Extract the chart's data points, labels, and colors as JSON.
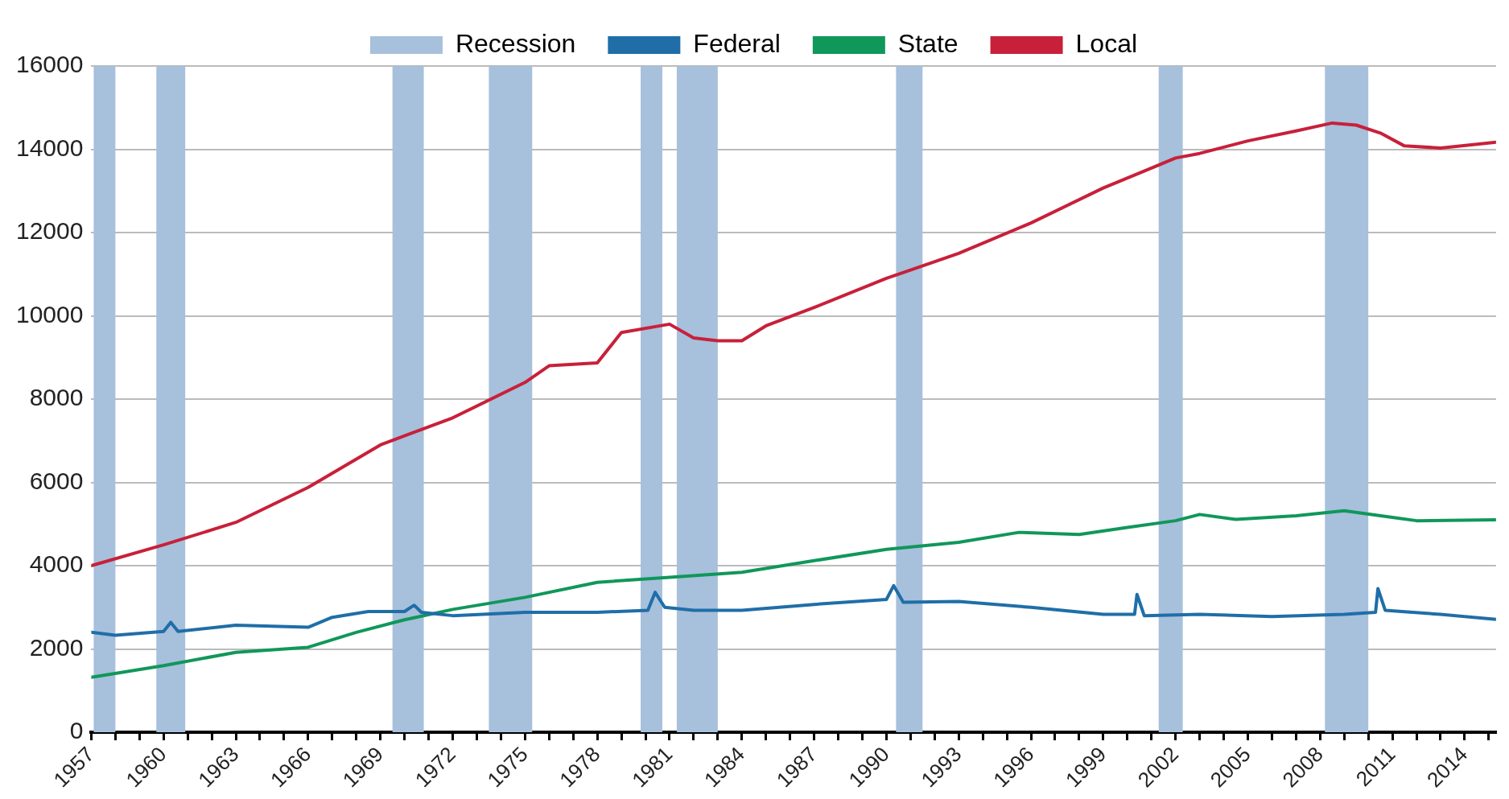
{
  "chart_data": {
    "type": "line",
    "xlim": [
      1957,
      2015.3
    ],
    "xticks": [
      1957,
      {
        "value": 1958,
        "label": null
      },
      {
        "value": 1959,
        "label": null
      },
      1960,
      {
        "value": 1961,
        "label": null
      },
      {
        "value": 1962,
        "label": null
      },
      1963,
      {
        "value": 1964,
        "label": null
      },
      {
        "value": 1965,
        "label": null
      },
      1966,
      {
        "value": 1967,
        "label": null
      },
      {
        "value": 1968,
        "label": null
      },
      1969,
      {
        "value": 1970,
        "label": null
      },
      {
        "value": 1971,
        "label": null
      },
      1972,
      {
        "value": 1973,
        "label": null
      },
      {
        "value": 1974,
        "label": null
      },
      1975,
      {
        "value": 1976,
        "label": null
      },
      {
        "value": 1977,
        "label": null
      },
      1978,
      {
        "value": 1979,
        "label": null
      },
      {
        "value": 1980,
        "label": null
      },
      1981,
      {
        "value": 1982,
        "label": null
      },
      {
        "value": 1983,
        "label": null
      },
      1984,
      {
        "value": 1985,
        "label": null
      },
      {
        "value": 1986,
        "label": null
      },
      1987,
      {
        "value": 1988,
        "label": null
      },
      {
        "value": 1989,
        "label": null
      },
      1990,
      {
        "value": 1991,
        "label": null
      },
      {
        "value": 1992,
        "label": null
      },
      1993,
      {
        "value": 1994,
        "label": null
      },
      {
        "value": 1995,
        "label": null
      },
      1996,
      {
        "value": 1997,
        "label": null
      },
      {
        "value": 1998,
        "label": null
      },
      1999,
      {
        "value": 2000,
        "label": null
      },
      {
        "value": 2001,
        "label": null
      },
      2002,
      {
        "value": 2003,
        "label": null
      },
      {
        "value": 2004,
        "label": null
      },
      2005,
      {
        "value": 2006,
        "label": null
      },
      {
        "value": 2007,
        "label": null
      },
      2008,
      {
        "value": 2009,
        "label": null
      },
      {
        "value": 2010,
        "label": null
      },
      2011,
      {
        "value": 2012,
        "label": null
      },
      {
        "value": 2013,
        "label": null
      },
      2014,
      {
        "value": 2015,
        "label": null
      }
    ],
    "ylim": [
      0,
      16000
    ],
    "yticks": [
      0,
      2000,
      4000,
      6000,
      8000,
      10000,
      12000,
      14000,
      16000
    ],
    "grid": "y",
    "legend": "top",
    "marker": "none",
    "line_style": "solid",
    "bands": [
      {
        "axis": "x",
        "from": 1957.1,
        "to": 1958.0,
        "label": "Recession",
        "color": "#a7c0dc"
      },
      {
        "axis": "x",
        "from": 1959.7,
        "to": 1960.9,
        "color": "#a7c0dc"
      },
      {
        "axis": "x",
        "from": 1969.5,
        "to": 1970.8,
        "color": "#a7c0dc"
      },
      {
        "axis": "x",
        "from": 1973.5,
        "to": 1975.3,
        "color": "#a7c0dc"
      },
      {
        "axis": "x",
        "from": 1979.8,
        "to": 1980.7,
        "color": "#a7c0dc"
      },
      {
        "axis": "x",
        "from": 1981.3,
        "to": 1983.0,
        "color": "#a7c0dc"
      },
      {
        "axis": "x",
        "from": 1990.4,
        "to": 1991.5,
        "color": "#a7c0dc"
      },
      {
        "axis": "x",
        "from": 2001.3,
        "to": 2002.3,
        "color": "#a7c0dc"
      },
      {
        "axis": "x",
        "from": 2008.2,
        "to": 2010.0,
        "color": "#a7c0dc"
      }
    ],
    "series": [
      {
        "name": "Federal",
        "color": "#1f6ea8",
        "x": [
          1957,
          1958,
          1960,
          1960.3,
          1960.6,
          1963,
          1966,
          1967,
          1968.5,
          1970,
          1970.4,
          1970.7,
          1972,
          1975,
          1978,
          1980.1,
          1980.4,
          1980.8,
          1982,
          1984,
          1987,
          1990,
          1990.3,
          1990.7,
          1993,
          1996,
          1999,
          2000.3,
          2000.4,
          2000.7,
          2003,
          2006,
          2009,
          2010.3,
          2010.4,
          2010.7,
          2013,
          2015.3
        ],
        "values": [
          2400,
          2330,
          2420,
          2640,
          2420,
          2570,
          2520,
          2760,
          2900,
          2900,
          3050,
          2880,
          2800,
          2880,
          2880,
          2930,
          3360,
          3000,
          2930,
          2930,
          3070,
          3190,
          3520,
          3120,
          3140,
          3000,
          2830,
          2830,
          3310,
          2800,
          2830,
          2780,
          2830,
          2880,
          3450,
          2930,
          2830,
          2710
        ]
      },
      {
        "name": "State",
        "color": "#10975a",
        "x": [
          1957,
          1960,
          1963,
          1966,
          1968,
          1970,
          1972,
          1975,
          1978,
          1981,
          1984,
          1987,
          1990,
          1993,
          1995.5,
          1998,
          2000,
          2002,
          2003,
          2004.5,
          2007,
          2009,
          2011,
          2012,
          2015.3
        ],
        "values": [
          1320,
          1600,
          1920,
          2040,
          2400,
          2700,
          2950,
          3240,
          3600,
          3720,
          3840,
          4120,
          4390,
          4560,
          4800,
          4750,
          4920,
          5080,
          5230,
          5110,
          5200,
          5320,
          5160,
          5080,
          5100
        ]
      },
      {
        "name": "Local",
        "color": "#c8203a",
        "x": [
          1957,
          1960,
          1963,
          1966,
          1969,
          1972,
          1975,
          1976,
          1978,
          1979,
          1981,
          1982,
          1983,
          1984,
          1985,
          1987,
          1990,
          1991,
          1993,
          1996,
          1999,
          2001,
          2002,
          2003,
          2005,
          2007,
          2008.5,
          2009.5,
          2010.5,
          2011.5,
          2013,
          2015.3
        ],
        "values": [
          4000,
          4500,
          5040,
          5880,
          6900,
          7550,
          8400,
          8800,
          8870,
          9600,
          9800,
          9470,
          9400,
          9400,
          9760,
          10200,
          10900,
          11100,
          11500,
          12230,
          13070,
          13550,
          13790,
          13900,
          14200,
          14440,
          14630,
          14580,
          14390,
          14080,
          14030,
          14170
        ]
      }
    ]
  }
}
